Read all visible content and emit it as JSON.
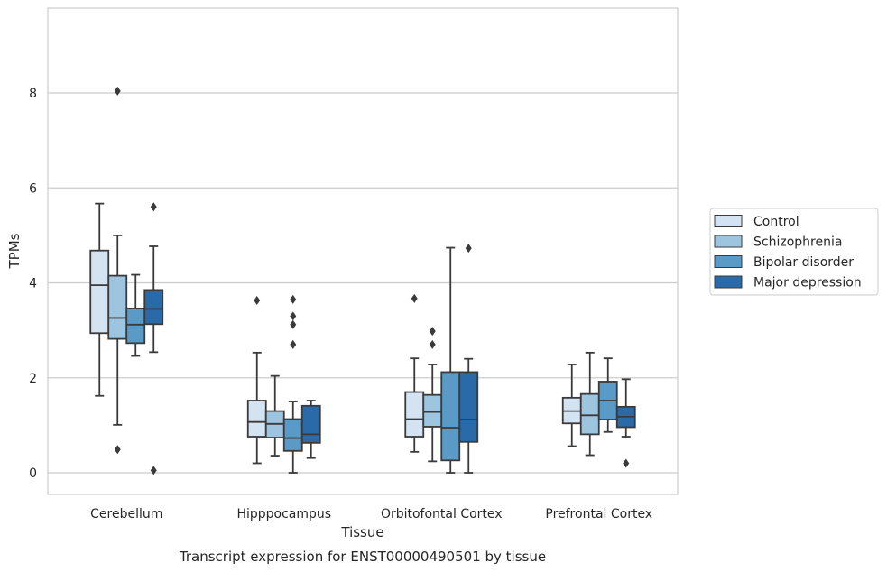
{
  "chart_data": {
    "type": "box",
    "title": "",
    "caption": "Transcript expression for ENST00000490501 by tissue",
    "xlabel": "Tissue",
    "ylabel": "TPMs",
    "ylim": [
      -0.45,
      9.8
    ],
    "yticks": [
      0,
      2,
      4,
      6,
      8
    ],
    "grid": "horizontal",
    "legend_position": "right",
    "categories": [
      "Cerebellum",
      "Hipppocampus",
      "Orbitofontal Cortex",
      "Prefrontal Cortex"
    ],
    "series": [
      {
        "name": "Control",
        "color": "#d4e3f2",
        "boxes": [
          {
            "whisker_low": 1.62,
            "q1": 2.94,
            "median": 3.95,
            "q3": 4.68,
            "whisker_high": 5.67,
            "outliers": []
          },
          {
            "whisker_low": 0.2,
            "q1": 0.76,
            "median": 1.07,
            "q3": 1.52,
            "whisker_high": 2.53,
            "outliers": [
              3.63
            ]
          },
          {
            "whisker_low": 0.44,
            "q1": 0.76,
            "median": 1.13,
            "q3": 1.7,
            "whisker_high": 2.41,
            "outliers": [
              3.67
            ]
          },
          {
            "whisker_low": 0.56,
            "q1": 1.04,
            "median": 1.3,
            "q3": 1.58,
            "whisker_high": 2.28,
            "outliers": []
          }
        ]
      },
      {
        "name": "Schizophrenia",
        "color": "#9ec5e0",
        "boxes": [
          {
            "whisker_low": 1.01,
            "q1": 2.82,
            "median": 3.26,
            "q3": 4.15,
            "whisker_high": 5.0,
            "outliers": [
              0.49,
              8.04
            ]
          },
          {
            "whisker_low": 0.36,
            "q1": 0.74,
            "median": 1.03,
            "q3": 1.3,
            "whisker_high": 2.04,
            "outliers": []
          },
          {
            "whisker_low": 0.24,
            "q1": 0.97,
            "median": 1.28,
            "q3": 1.64,
            "whisker_high": 2.28,
            "outliers": [
              2.7,
              2.98
            ]
          },
          {
            "whisker_low": 0.37,
            "q1": 0.81,
            "median": 1.21,
            "q3": 1.66,
            "whisker_high": 2.53,
            "outliers": []
          }
        ]
      },
      {
        "name": "Bipolar disorder",
        "color": "#5a9ac7",
        "boxes": [
          {
            "whisker_low": 2.46,
            "q1": 2.73,
            "median": 3.12,
            "q3": 3.46,
            "whisker_high": 4.17,
            "outliers": []
          },
          {
            "whisker_low": 0.0,
            "q1": 0.46,
            "median": 0.73,
            "q3": 1.13,
            "whisker_high": 1.5,
            "outliers": [
              2.7,
              3.12,
              3.3,
              3.65
            ]
          },
          {
            "whisker_low": 0.0,
            "q1": 0.26,
            "median": 0.95,
            "q3": 2.12,
            "whisker_high": 4.74,
            "outliers": []
          },
          {
            "whisker_low": 0.86,
            "q1": 1.12,
            "median": 1.52,
            "q3": 1.92,
            "whisker_high": 2.41,
            "outliers": []
          }
        ]
      },
      {
        "name": "Major depression",
        "color": "#2b6aa8",
        "boxes": [
          {
            "whisker_low": 2.54,
            "q1": 3.13,
            "median": 3.45,
            "q3": 3.85,
            "whisker_high": 4.77,
            "outliers": [
              0.05,
              5.6
            ]
          },
          {
            "whisker_low": 0.31,
            "q1": 0.63,
            "median": 0.81,
            "q3": 1.41,
            "whisker_high": 1.52,
            "outliers": []
          },
          {
            "whisker_low": 0.0,
            "q1": 0.65,
            "median": 1.12,
            "q3": 2.12,
            "whisker_high": 2.4,
            "outliers": [
              4.73
            ]
          },
          {
            "whisker_low": 0.76,
            "q1": 0.96,
            "median": 1.18,
            "q3": 1.39,
            "whisker_high": 1.97,
            "outliers": [
              0.2
            ]
          }
        ]
      }
    ]
  }
}
